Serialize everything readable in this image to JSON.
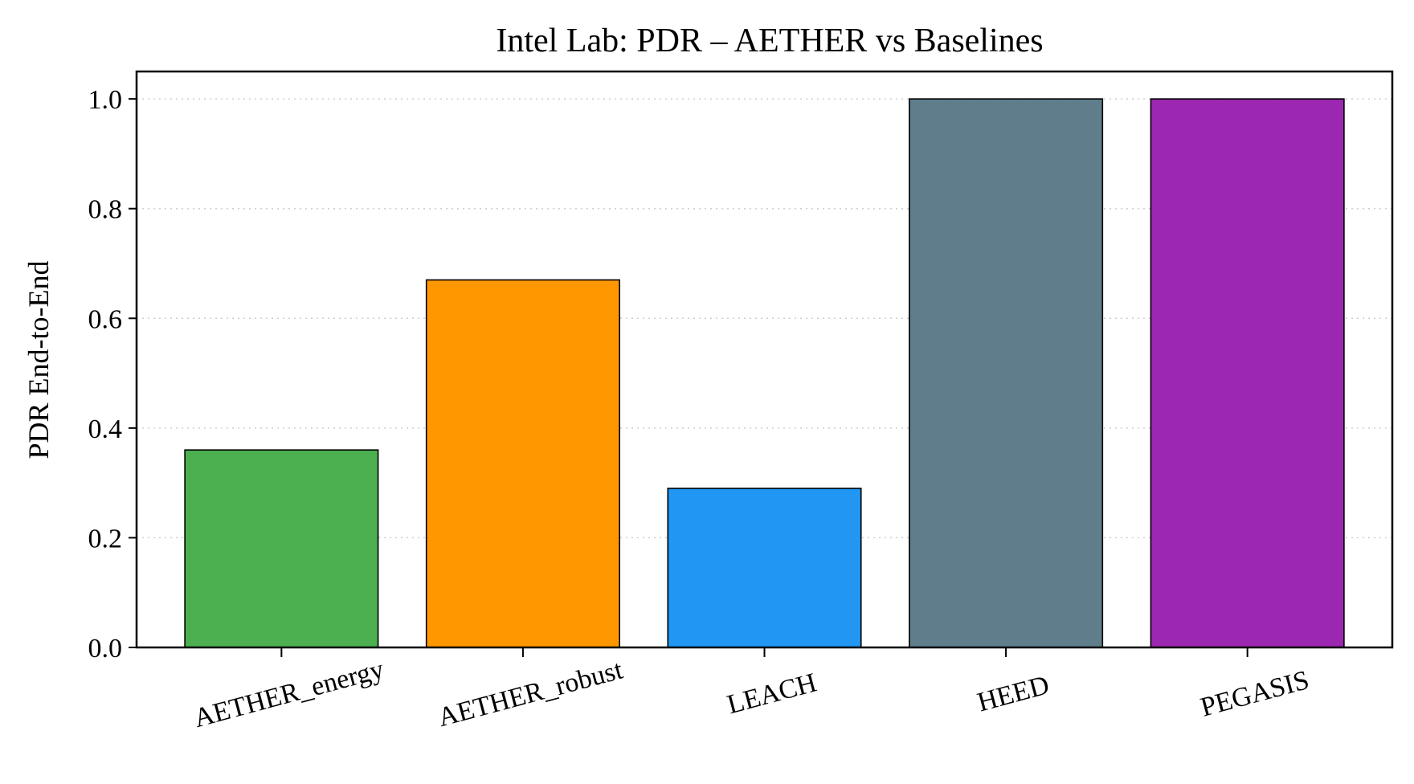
{
  "chart_data": {
    "type": "bar",
    "title": "Intel Lab: PDR – AETHER vs Baselines",
    "xlabel": "",
    "ylabel": "PDR End-to-End",
    "categories": [
      "AETHER_energy",
      "AETHER_robust",
      "LEACH",
      "HEED",
      "PEGASIS"
    ],
    "values": [
      0.36,
      0.67,
      0.29,
      1.0,
      1.0
    ],
    "colors": [
      "#4caf50",
      "#ff9800",
      "#2196f3",
      "#607d8b",
      "#9c27b0"
    ],
    "ylim": [
      0,
      1.05
    ],
    "yticks": [
      "0.0",
      "0.2",
      "0.4",
      "0.6",
      "0.8",
      "1.0"
    ],
    "grid": "y-dotted",
    "legend": "none"
  }
}
